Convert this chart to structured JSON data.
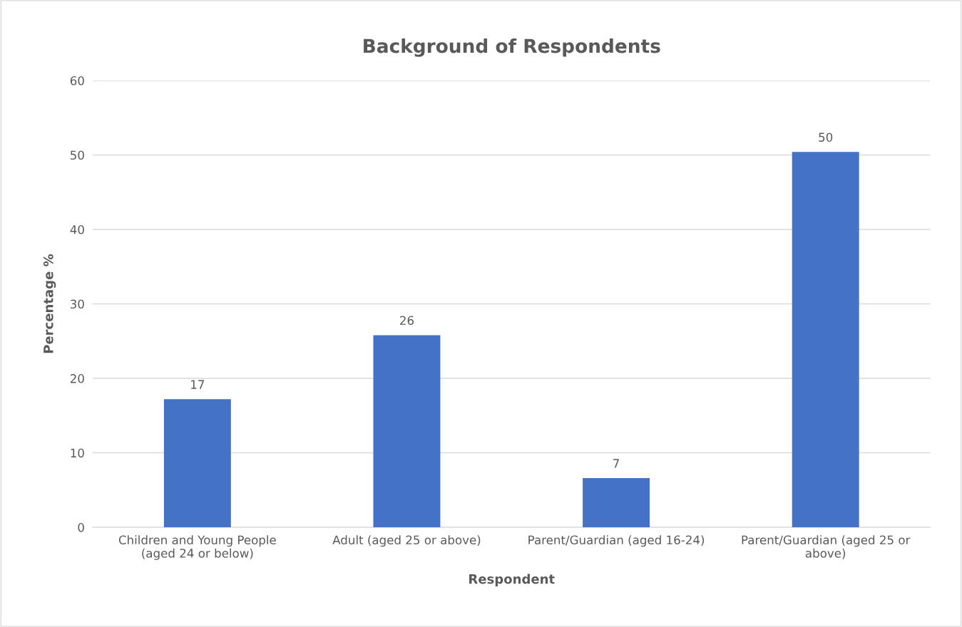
{
  "chart_data": {
    "type": "bar",
    "title": "Background of Respondents",
    "xlabel": "Respondent",
    "ylabel": "Percentage %",
    "categories": [
      "Children and Young People\n(aged 24 or below)",
      "Adult (aged 25 or above)",
      "Parent/Guardian (aged 16-24)",
      "Parent/Guardian (aged 25 or\nabove)"
    ],
    "values": [
      17.2,
      25.8,
      6.6,
      50.4
    ],
    "value_labels": [
      "17",
      "26",
      "7",
      "50"
    ],
    "color": "#4472c4",
    "ylim": [
      0,
      60
    ],
    "yticks": [
      0,
      10,
      20,
      30,
      40,
      50,
      60
    ],
    "grid": "y",
    "legend": false
  }
}
